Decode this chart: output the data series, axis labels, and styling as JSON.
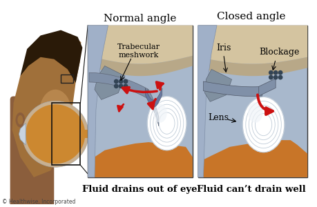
{
  "left_panel_title": "Normal angle",
  "right_panel_title": "Closed angle",
  "left_caption": "Fluid drains out of eye",
  "right_caption": "Fluid can’t drain well",
  "copyright": "© Healthwise, Incorporated",
  "labels": {
    "trabecular": "Trabecular\nmeshwork",
    "iris": "Iris",
    "blockage": "Blockage",
    "lens": "Lens"
  },
  "bg_color": "#ffffff",
  "skin_dark": "#8B5E3C",
  "skin_mid": "#A0703A",
  "skin_light": "#C8955A",
  "hair_color": "#2a1a08",
  "orange_body": "#c87528",
  "sclera_outer": "#c8b090",
  "sclera_inner": "#e8d8b8",
  "iris_blue": "#8090a8",
  "lens_white": "#e8eef5",
  "aqueous_blue": "#a8b8cc",
  "ciliary_gray": "#8090a0",
  "arrow_red": "#cc1111",
  "trabecular_dark": "#334455",
  "panel_border": "#333333",
  "caption_color": "#000000",
  "title_color": "#000000"
}
